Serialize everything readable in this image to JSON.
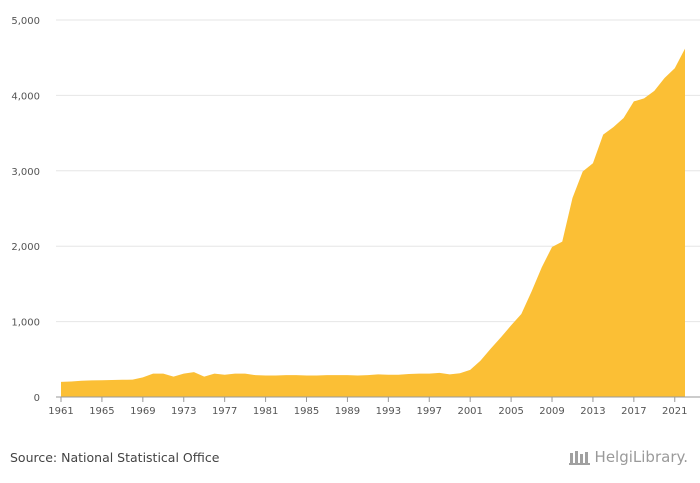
{
  "chart_data": {
    "type": "area",
    "x": [
      1961,
      1962,
      1963,
      1964,
      1965,
      1966,
      1967,
      1968,
      1969,
      1970,
      1971,
      1972,
      1973,
      1974,
      1975,
      1976,
      1977,
      1978,
      1979,
      1980,
      1981,
      1982,
      1983,
      1984,
      1985,
      1986,
      1987,
      1988,
      1989,
      1990,
      1991,
      1992,
      1993,
      1994,
      1995,
      1996,
      1997,
      1998,
      1999,
      2000,
      2001,
      2002,
      2003,
      2004,
      2005,
      2006,
      2007,
      2008,
      2009,
      2010,
      2011,
      2012,
      2013,
      2014,
      2015,
      2016,
      2017,
      2018,
      2019,
      2020,
      2021,
      2022
    ],
    "values": [
      200,
      205,
      215,
      220,
      222,
      225,
      228,
      230,
      260,
      310,
      310,
      270,
      310,
      330,
      270,
      310,
      295,
      310,
      310,
      290,
      285,
      285,
      290,
      290,
      285,
      285,
      290,
      290,
      290,
      285,
      290,
      300,
      295,
      295,
      305,
      310,
      310,
      320,
      300,
      315,
      360,
      480,
      640,
      790,
      950,
      1100,
      1400,
      1720,
      1990,
      2060,
      2640,
      2990,
      3100,
      3480,
      3580,
      3700,
      3920,
      3960,
      4060,
      4230,
      4360,
      4620
    ],
    "x_ticks": [
      "1961",
      "1965",
      "1969",
      "1973",
      "1977",
      "1981",
      "1985",
      "1989",
      "1993",
      "1997",
      "2001",
      "2005",
      "2009",
      "2013",
      "2017",
      "2021"
    ],
    "y_ticks": [
      "0",
      "1,000",
      "2,000",
      "3,000",
      "4,000",
      "5,000"
    ],
    "ylim": [
      0,
      5000
    ],
    "xlim": [
      1961,
      2022
    ],
    "grid": true,
    "colors": {
      "area": "#fbbf35",
      "grid": "#e6e6e6",
      "axis": "#999999"
    }
  },
  "footer": {
    "source": "Source: National Statistical Office",
    "brand": "HelgiLibrary."
  }
}
